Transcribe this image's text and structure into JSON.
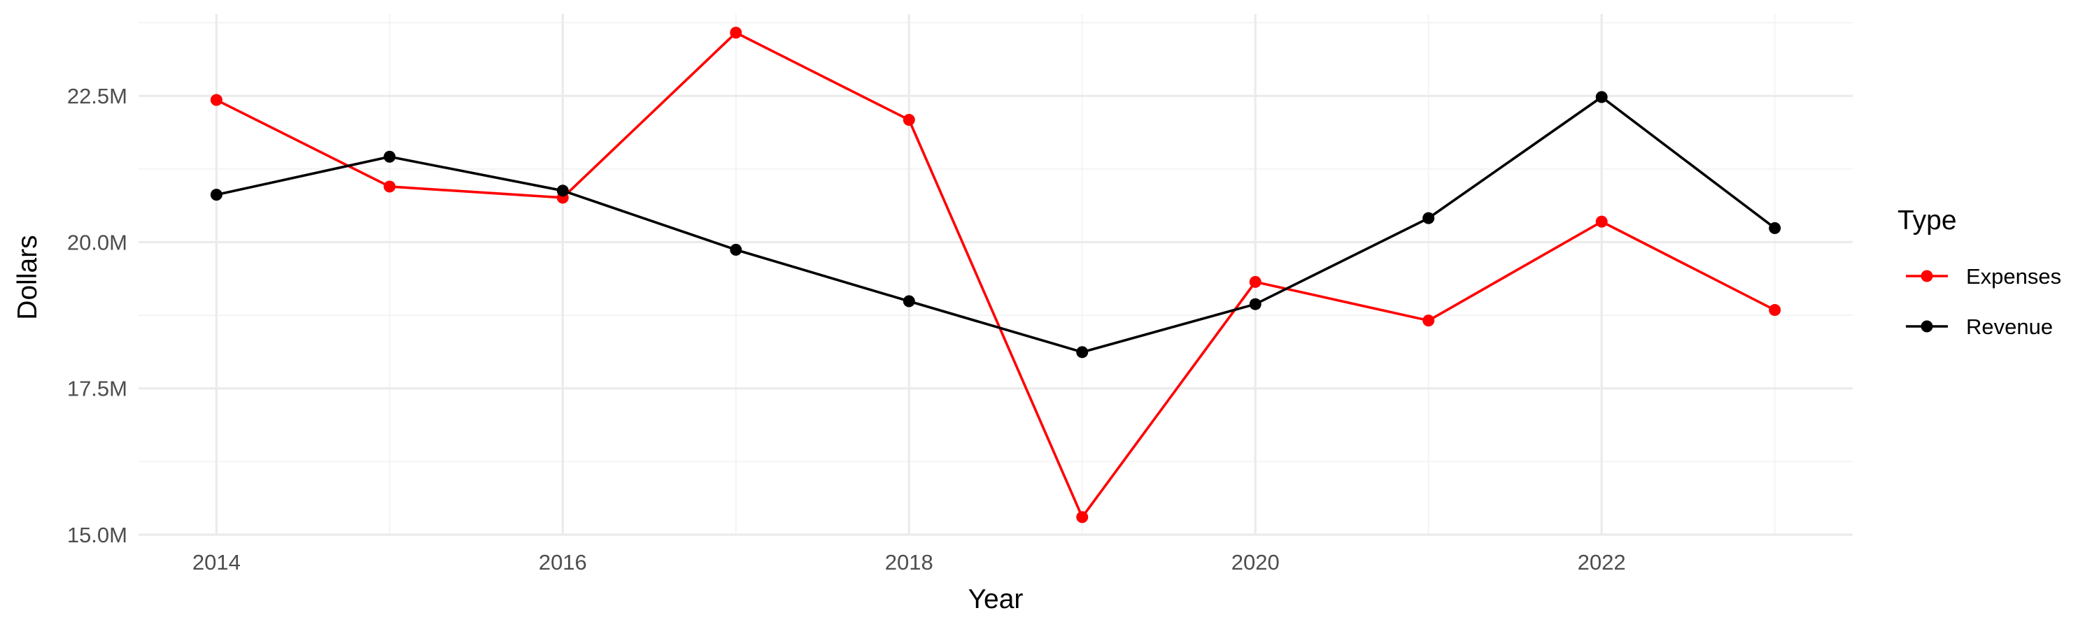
{
  "chart_data": {
    "type": "line",
    "xlabel": "Year",
    "ylabel": "Dollars",
    "x": [
      2014,
      2015,
      2016,
      2017,
      2018,
      2019,
      2020,
      2021,
      2022,
      2023
    ],
    "xticks": [
      2014,
      2016,
      2018,
      2020,
      2022
    ],
    "xtick_labels": [
      "2014",
      "2016",
      "2018",
      "2020",
      "2022"
    ],
    "xlim": [
      2013.55,
      2023.45
    ],
    "ylim": [
      15.0,
      23.9
    ],
    "yticks": [
      15.0,
      17.5,
      20.0,
      22.5
    ],
    "ytick_labels": [
      "15.0M",
      "17.5M",
      "20.0M",
      "22.5M"
    ],
    "y_unit": "millions of dollars",
    "grid": true,
    "legend": {
      "title": "Type",
      "position": "right"
    },
    "series": [
      {
        "name": "Expenses",
        "color": "#ff0000",
        "values": [
          22.43,
          20.95,
          20.76,
          23.58,
          22.09,
          15.3,
          19.32,
          18.66,
          20.35,
          18.84
        ]
      },
      {
        "name": "Revenue",
        "color": "#000000",
        "values": [
          20.81,
          21.46,
          20.88,
          19.87,
          18.99,
          18.12,
          18.94,
          20.41,
          22.48,
          20.24
        ]
      }
    ]
  }
}
